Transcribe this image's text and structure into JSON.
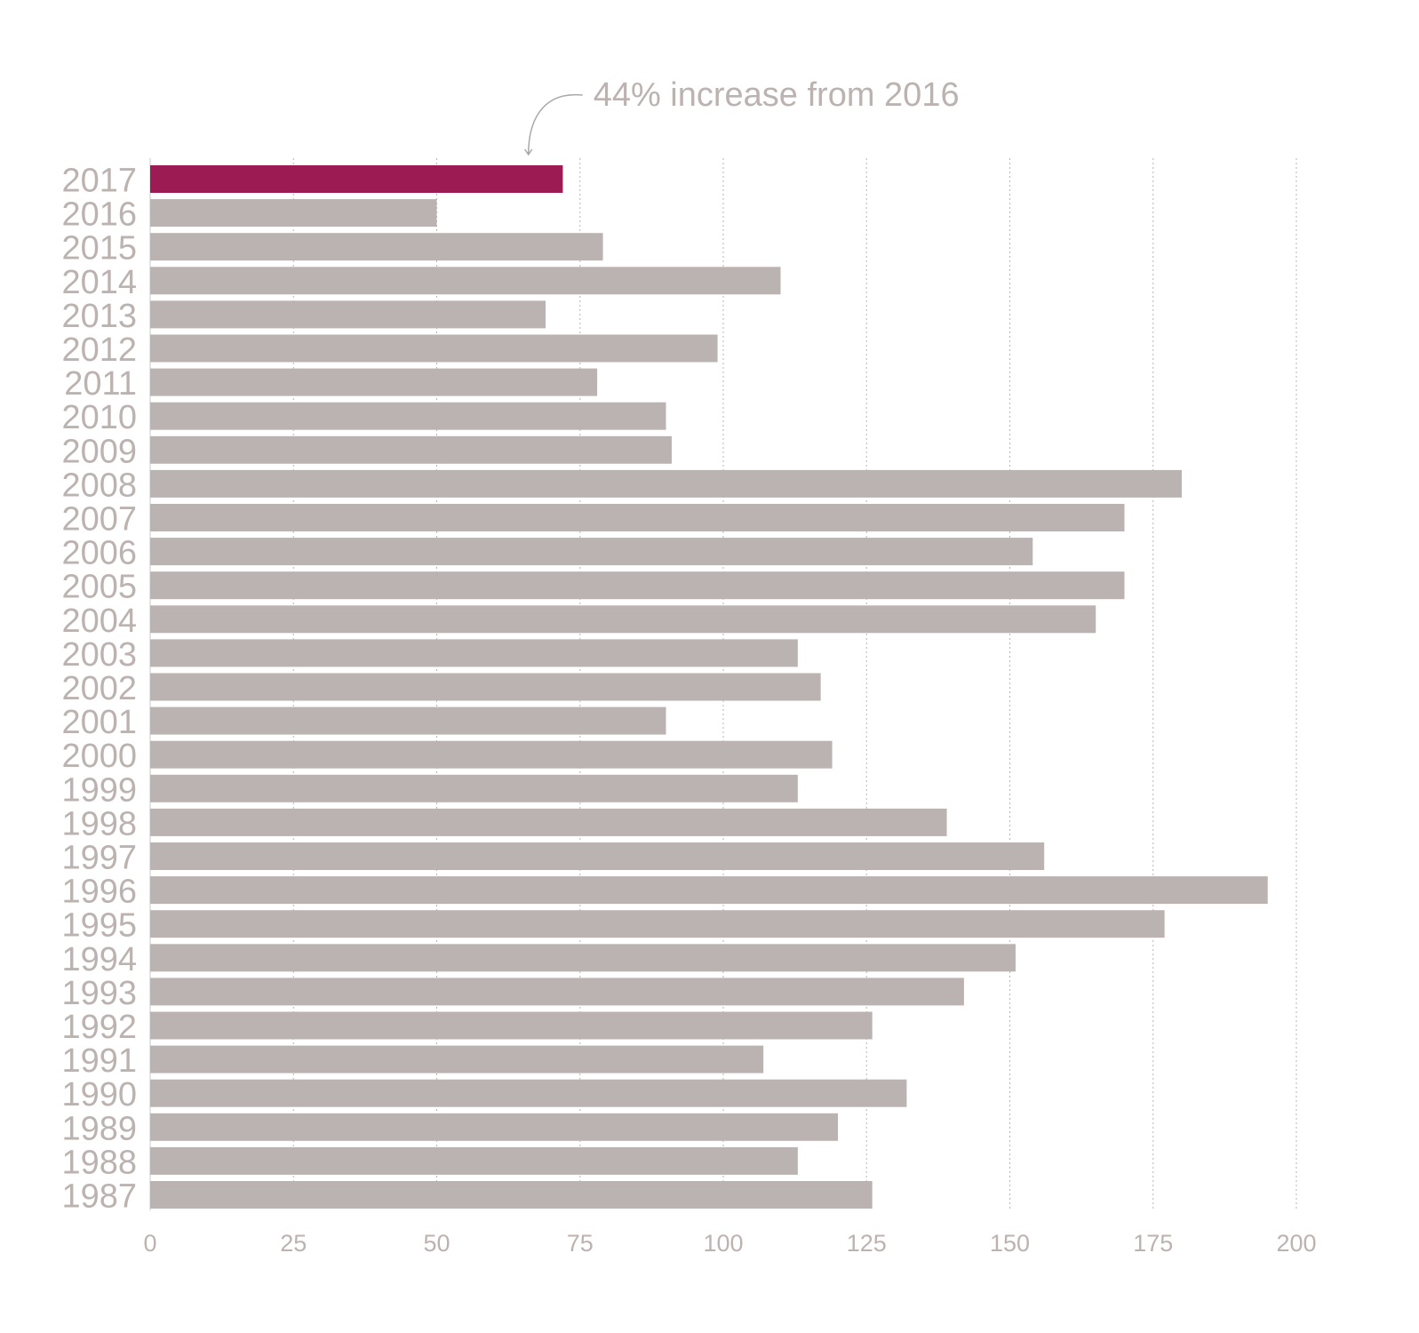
{
  "chart_data": {
    "type": "bar",
    "orientation": "horizontal",
    "categories": [
      "2017",
      "2016",
      "2015",
      "2014",
      "2013",
      "2012",
      "2011",
      "2010",
      "2009",
      "2008",
      "2007",
      "2006",
      "2005",
      "2004",
      "2003",
      "2002",
      "2001",
      "2000",
      "1999",
      "1998",
      "1997",
      "1996",
      "1995",
      "1994",
      "1993",
      "1992",
      "1991",
      "1990",
      "1989",
      "1988",
      "1987"
    ],
    "values": [
      72,
      50,
      79,
      110,
      69,
      99,
      78,
      90,
      91,
      180,
      170,
      154,
      170,
      165,
      113,
      117,
      90,
      119,
      113,
      139,
      156,
      195,
      177,
      151,
      142,
      126,
      107,
      132,
      120,
      113,
      126
    ],
    "highlight_category": "2017",
    "bar_color": "#bbb3b1",
    "highlight_color": "#9b1b52",
    "xlim": [
      0,
      200
    ],
    "xticks": [
      0,
      25,
      50,
      75,
      100,
      125,
      150,
      175,
      200
    ],
    "grid": true,
    "title": "",
    "xlabel": "",
    "ylabel": "",
    "annotation": {
      "text": "44% increase from 2016",
      "target_category": "2017",
      "target_value": 66
    }
  }
}
